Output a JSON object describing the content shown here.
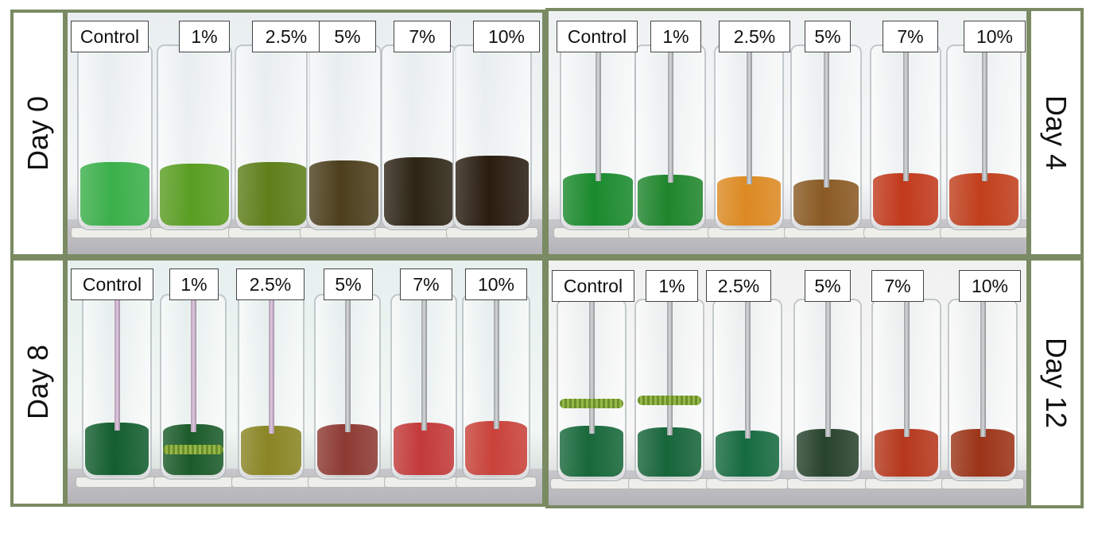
{
  "panels": [
    {
      "day": "Day 0",
      "labels": [
        "Control",
        "1%",
        "2.5%",
        "5%",
        "7%",
        "10%"
      ],
      "colors": [
        "#3bb04a",
        "#5a9e22",
        "#5e7f1a",
        "#4d3f1d",
        "#2d2414",
        "#2a1d10"
      ]
    },
    {
      "day": "Day 4",
      "labels": [
        "Control",
        "1%",
        "2.5%",
        "5%",
        "7%",
        "10%"
      ],
      "colors": [
        "#1a8a2d",
        "#1f862c",
        "#dd8a22",
        "#8a5a23",
        "#c23a1c",
        "#c13f1c"
      ]
    },
    {
      "day": "Day 8",
      "labels": [
        "Control",
        "1%",
        "2.5%",
        "5%",
        "7%",
        "10%"
      ],
      "colors": [
        "#135e2f",
        "#1b5b2a",
        "#8a8524",
        "#8e3a33",
        "#c43a3a",
        "#c9423a"
      ]
    },
    {
      "day": "Day 12",
      "labels": [
        "Control",
        "1%",
        "2.5%",
        "5%",
        "7%",
        "10%"
      ],
      "colors": [
        "#17683a",
        "#17653a",
        "#166b40",
        "#28432d",
        "#b6381c",
        "#9c3418"
      ]
    }
  ]
}
